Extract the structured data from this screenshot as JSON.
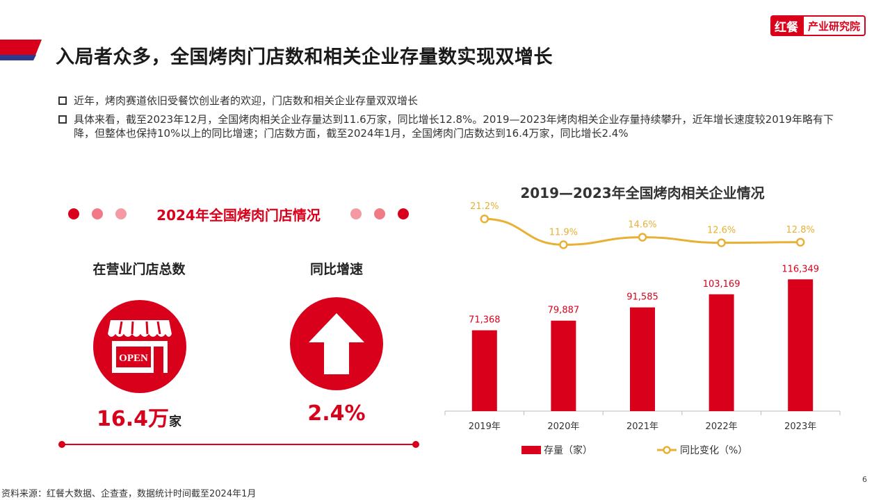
{
  "header": {
    "title": "入局者众多，全国烤肉门店数和相关企业存量数实现双增长",
    "logo_left": "红餐",
    "logo_right": "产业研究院"
  },
  "bullets": [
    "近年，烤肉赛道依旧受餐饮创业者的欢迎，门店数和相关企业存量双双增长",
    "具体来看，截至2023年12月，全国烤肉相关企业存量达到11.6万家，同比增长12.8%。2019—2023年烤肉相关企业存量持续攀升，近年增长速度较2019年略有下降，但整体也保持10%以上的同比增速；门店数方面，截至2024年1月，全国烤肉门店数达到16.4万家，同比增长2.4%"
  ],
  "left_panel": {
    "title": "2024年全国烤肉门店情况",
    "stores": {
      "label": "在营业门店总数",
      "value": "16.4万",
      "unit": "家",
      "sign": "OPEN"
    },
    "growth": {
      "label": "同比增速",
      "value": "2.4%"
    }
  },
  "colors": {
    "accent": "#d9001b",
    "line": "#e8b034",
    "dot_light": "#f07b86",
    "dot_lighter": "#f49aa3"
  },
  "chart_data": {
    "type": "bar",
    "title": "2019—2023年全国烤肉相关企业情况",
    "categories": [
      "2019年",
      "2020年",
      "2021年",
      "2022年",
      "2023年"
    ],
    "series": [
      {
        "name": "存量（家）",
        "type": "bar",
        "values": [
          71368,
          79887,
          91585,
          103169,
          116349
        ],
        "labels": [
          "71,368",
          "79,887",
          "91,585",
          "103,169",
          "116,349"
        ]
      },
      {
        "name": "同比变化（%）",
        "type": "line",
        "values": [
          21.2,
          11.9,
          14.6,
          12.6,
          12.8
        ],
        "labels": [
          "21.2%",
          "11.9%",
          "14.6%",
          "12.6%",
          "12.8%"
        ]
      }
    ],
    "ylim_bar": [
      0,
      130000
    ],
    "ylim_line": [
      0,
      25
    ],
    "legend": "bottom",
    "grid": false
  },
  "footer": {
    "source": "资料来源：红餐大数据、企查查，数据统计时间截至2024年1月",
    "page": "6"
  }
}
